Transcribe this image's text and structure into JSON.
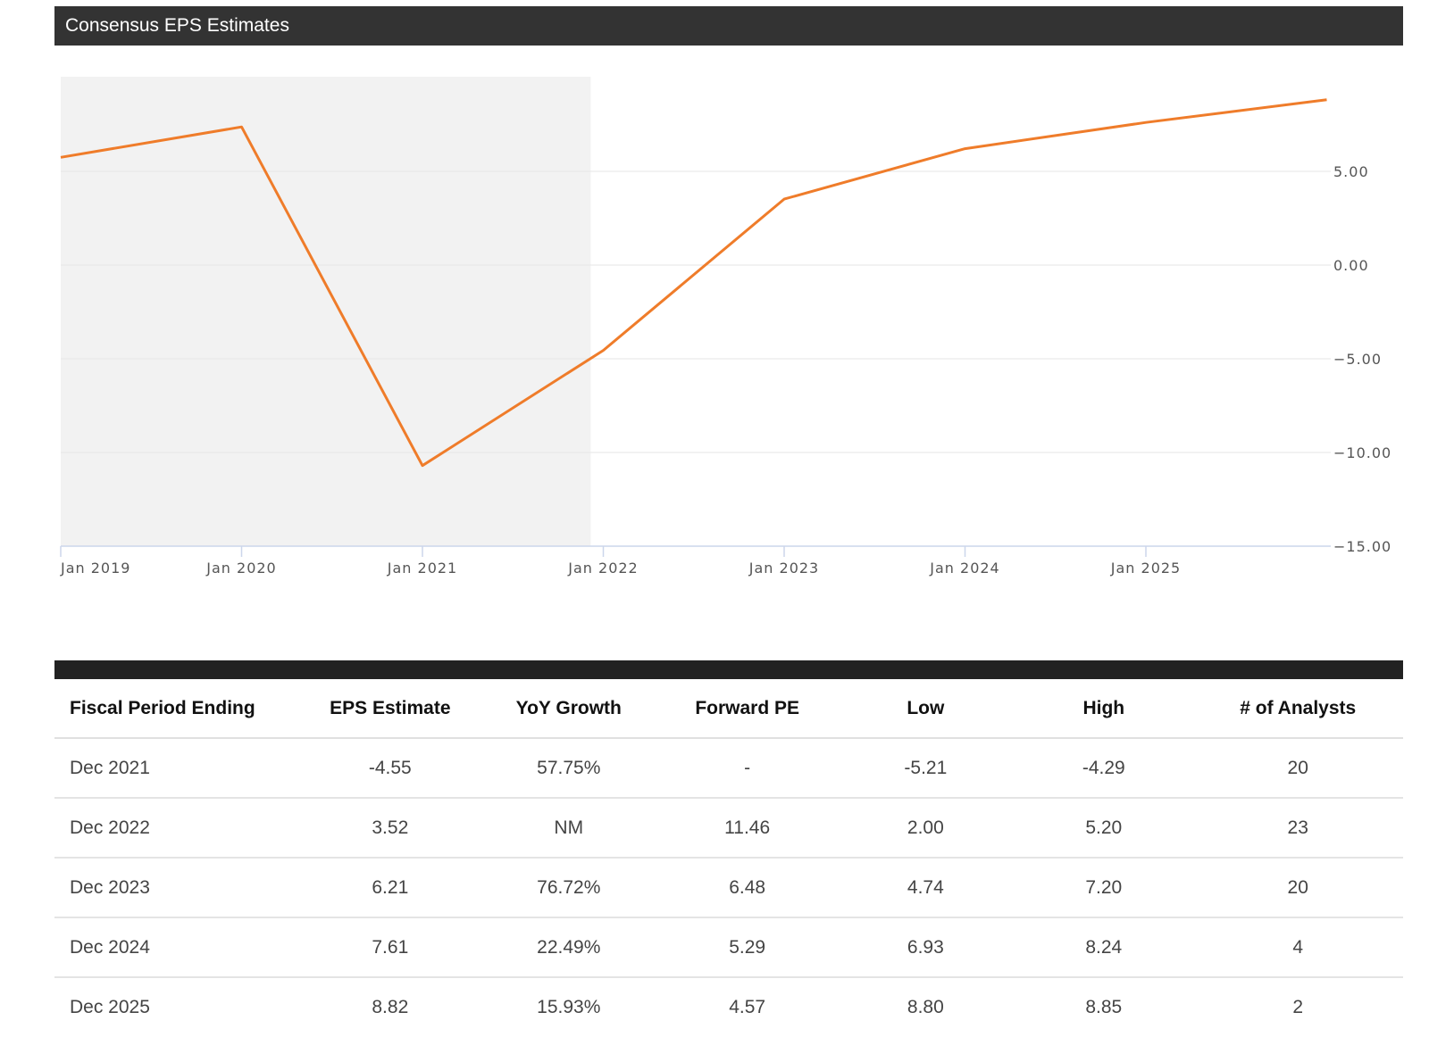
{
  "header": {
    "title": "Consensus EPS Estimates"
  },
  "chart_data": {
    "type": "line",
    "x": [
      "2019-01",
      "2020-01",
      "2021-01",
      "2022-01",
      "2023-01",
      "2024-01",
      "2025-01",
      "2026-01"
    ],
    "values": [
      5.75,
      7.37,
      -10.7,
      -4.55,
      3.52,
      6.21,
      7.61,
      8.82
    ],
    "x_tick_labels": [
      "Jan 2019",
      "Jan 2020",
      "Jan 2021",
      "Jan 2022",
      "Jan 2023",
      "Jan 2024",
      "Jan 2025"
    ],
    "y_tick_labels": [
      "5.00",
      "0.00",
      "−5.00",
      "−10.00",
      "−15.00"
    ],
    "y_ticks": [
      5,
      0,
      -5,
      -10,
      -15
    ],
    "ylim": [
      -15,
      10
    ],
    "series_color": "#ef7c2a",
    "historical_band": {
      "from": "2019-01",
      "to": "2021-12",
      "color": "#f2f2f2"
    },
    "grid": true,
    "yaxis_position": "right"
  },
  "table": {
    "columns": [
      "Fiscal Period Ending",
      "EPS Estimate",
      "YoY Growth",
      "Forward PE",
      "Low",
      "High",
      "# of Analysts"
    ],
    "rows": [
      [
        "Dec 2021",
        "-4.55",
        "57.75%",
        "-",
        "-5.21",
        "-4.29",
        "20"
      ],
      [
        "Dec 2022",
        "3.52",
        "NM",
        "11.46",
        "2.00",
        "5.20",
        "23"
      ],
      [
        "Dec 2023",
        "6.21",
        "76.72%",
        "6.48",
        "4.74",
        "7.20",
        "20"
      ],
      [
        "Dec 2024",
        "7.61",
        "22.49%",
        "5.29",
        "6.93",
        "8.24",
        "4"
      ],
      [
        "Dec 2025",
        "8.82",
        "15.93%",
        "4.57",
        "8.80",
        "8.85",
        "2"
      ]
    ]
  }
}
